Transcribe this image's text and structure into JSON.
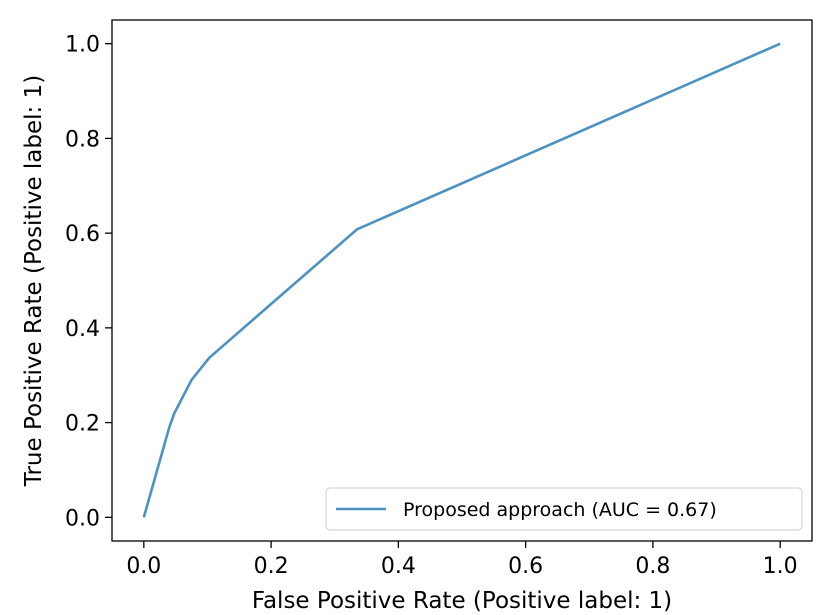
{
  "chart_data": {
    "type": "line",
    "title": "",
    "xlabel": "False Positive Rate (Positive label: 1)",
    "ylabel": "True Positive Rate (Positive label: 1)",
    "xlim": [
      -0.05,
      1.05
    ],
    "ylim": [
      -0.05,
      1.05
    ],
    "xticks": [
      0.0,
      0.2,
      0.4,
      0.6,
      0.8,
      1.0
    ],
    "xtick_labels": [
      "0.0",
      "0.2",
      "0.4",
      "0.6",
      "0.8",
      "1.0"
    ],
    "yticks": [
      0.0,
      0.2,
      0.4,
      0.6,
      0.8,
      1.0
    ],
    "ytick_labels": [
      "0.0",
      "0.2",
      "0.4",
      "0.6",
      "0.8",
      "1.0"
    ],
    "grid": false,
    "legend_position": "lower-right",
    "series": [
      {
        "name": "Proposed approach (AUC = 0.67)",
        "color": "#1f77b4",
        "x": [
          0.0,
          0.04,
          0.048,
          0.075,
          0.103,
          0.335,
          1.0
        ],
        "y": [
          0.0,
          0.19,
          0.22,
          0.29,
          0.337,
          0.608,
          1.0
        ]
      }
    ]
  }
}
